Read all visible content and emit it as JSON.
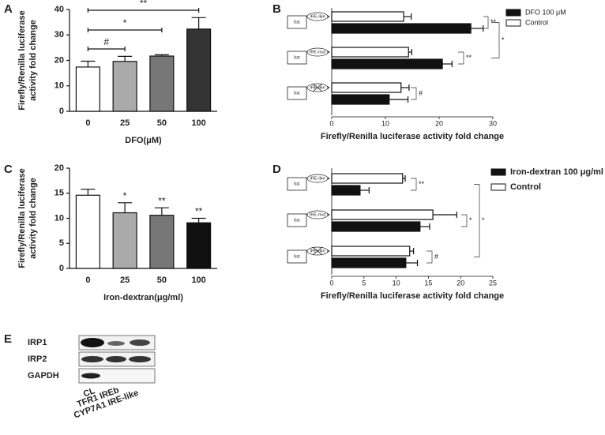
{
  "chart_data": [
    {
      "type": "bar",
      "panel": "A",
      "ylabel": [
        "Firefly/Renilla luciferase",
        "activity fold change"
      ],
      "xlabel": "DFO(μM)",
      "categories": [
        "0",
        "25",
        "50",
        "100"
      ],
      "values": [
        17.4,
        19.6,
        21.7,
        32.3
      ],
      "errors": [
        2.3,
        2.0,
        0.5,
        4.5
      ],
      "colors": [
        "#ffffff",
        "#aaaaaa",
        "#777777",
        "#333333"
      ],
      "ylim": [
        0,
        40
      ],
      "yticks": [
        0,
        10,
        20,
        30,
        40
      ],
      "annotations": [
        "#",
        "*",
        "**"
      ]
    },
    {
      "type": "barh",
      "panel": "B",
      "xlabel": "Firefly/Renilla luciferase activity fold change",
      "reporter": "luc",
      "categories": [
        "IRE-like",
        "IRE-mut",
        "IRE-like"
      ],
      "series": [
        {
          "name": "DFO 100 μM",
          "color": "#111111",
          "values": [
            25.9,
            20.6,
            10.7
          ],
          "errors": [
            2.3,
            1.8,
            3.5
          ]
        },
        {
          "name": "Control",
          "color": "#ffffff",
          "values": [
            13.4,
            14.3,
            12.9
          ],
          "errors": [
            1.4,
            0.6,
            1.5
          ]
        }
      ],
      "xlim": [
        0,
        30
      ],
      "xticks": [
        0,
        10,
        20,
        30
      ],
      "annotations": [
        "**",
        "**",
        "*",
        "#"
      ]
    },
    {
      "type": "bar",
      "panel": "C",
      "ylabel": [
        "Firefly/Renilla luciferase",
        "activity fold change"
      ],
      "xlabel": "Iron-dextran(μg/ml)",
      "categories": [
        "0",
        "25",
        "50",
        "100"
      ],
      "values": [
        14.6,
        11.1,
        10.6,
        9.1
      ],
      "errors": [
        1.2,
        2.0,
        1.5,
        0.9
      ],
      "colors": [
        "#ffffff",
        "#aaaaaa",
        "#777777",
        "#111111"
      ],
      "ylim": [
        0,
        20
      ],
      "yticks": [
        0,
        5,
        10,
        15,
        20
      ],
      "annotations": [
        "*",
        "**",
        "**"
      ]
    },
    {
      "type": "barh",
      "panel": "D",
      "xlabel": "Firefly/Renilla luciferase activity fold change",
      "reporter": "luc",
      "categories": [
        "IRE-like",
        "IRE-mut",
        "IRE-like"
      ],
      "series": [
        {
          "name": "Iron-dextran 100 μg/ml",
          "color": "#111111",
          "values": [
            4.4,
            13.7,
            11.5
          ],
          "errors": [
            1.4,
            1.5,
            1.8
          ]
        },
        {
          "name": "Control",
          "color": "#ffffff",
          "values": [
            11.0,
            15.7,
            12.1
          ],
          "errors": [
            0.4,
            3.7,
            0.6
          ]
        }
      ],
      "xlim": [
        0,
        25
      ],
      "xticks": [
        0,
        5,
        10,
        15,
        20,
        25
      ],
      "annotations": [
        "**",
        "*",
        "*",
        "#"
      ]
    }
  ],
  "blot": {
    "panel": "E",
    "rows": [
      "IRP1",
      "IRP2",
      "GAPDH"
    ],
    "lanes": [
      "CL",
      "TFR1 IREb",
      "CYP7A1 IRE-like"
    ]
  }
}
